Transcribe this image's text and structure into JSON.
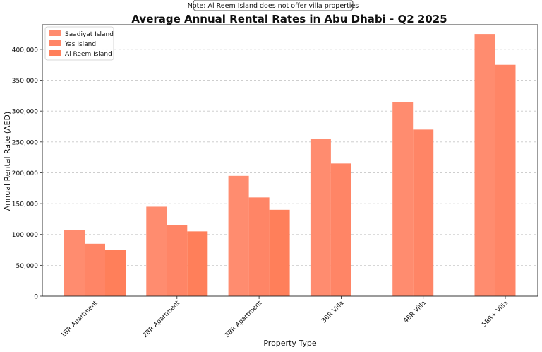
{
  "chart_data": {
    "type": "bar",
    "title": "Average Annual Rental Rates in Abu Dhabi - Q2 2025",
    "note": "Note: Al Reem Island does not offer villa properties",
    "xlabel": "Property Type",
    "ylabel": "Annual Rental Rate (AED)",
    "ylim": [
      0,
      440000
    ],
    "yticks": [
      0,
      50000,
      100000,
      150000,
      200000,
      250000,
      300000,
      350000,
      400000
    ],
    "ytick_labels": [
      "0",
      "50,000",
      "100,000",
      "150,000",
      "200,000",
      "250,000",
      "300,000",
      "350,000",
      "400,000"
    ],
    "grid": "y-dashed",
    "legend_position": "top-left",
    "categories": [
      "1BR Apartment",
      "2BR Apartment",
      "3BR Apartment",
      "3BR Villa",
      "4BR Villa",
      "5BR+ Villa"
    ],
    "series": [
      {
        "name": "Saadiyat Island",
        "color": "#FF8C6F",
        "values": [
          107000,
          145000,
          195000,
          255000,
          315000,
          425000
        ]
      },
      {
        "name": "Yas Island",
        "color": "#FF8566",
        "values": [
          85000,
          115000,
          160000,
          215000,
          270000,
          375000
        ]
      },
      {
        "name": "Al Reem Island",
        "color": "#FF7F5A",
        "values": [
          75000,
          105000,
          140000,
          null,
          null,
          null
        ]
      }
    ]
  }
}
